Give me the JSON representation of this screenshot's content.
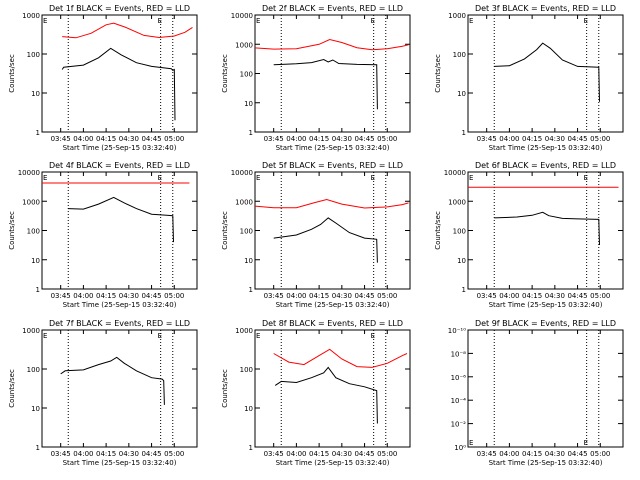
{
  "chart_data": [
    {
      "type": "line",
      "panel": 1,
      "title": "Det 1f BLACK = Events, RED = LLD",
      "xlabel": "Start Time (25-Sep-15 03:32:40)",
      "ylabel": "Counts/sec",
      "x_unit": "UT",
      "xlim": [
        "03:32:40",
        "05:15:00"
      ],
      "x_ticks": [
        "03:45",
        "04:00",
        "04:15",
        "04:30",
        "04:45",
        "05:00"
      ],
      "ylim": [
        1,
        1000
      ],
      "y_scale": "log",
      "y_ticks": [
        "1",
        "10",
        "100",
        "1000"
      ],
      "markers": [
        {
          "label": "E",
          "x": "03:32:40"
        },
        {
          "label": "E",
          "x": "04:51:00"
        }
      ],
      "dotted_lines": [
        "03:50",
        "04:51",
        "04:59"
      ],
      "series": [
        {
          "color": "#ff0000",
          "points": [
            [
              "03:46",
              280
            ],
            [
              "03:55",
              260
            ],
            [
              "04:05",
              340
            ],
            [
              "04:15",
              560
            ],
            [
              "04:20",
              620
            ],
            [
              "04:28",
              480
            ],
            [
              "04:40",
              300
            ],
            [
              "04:50",
              265
            ],
            [
              "05:00",
              290
            ],
            [
              "05:07",
              360
            ],
            [
              "05:12",
              480
            ]
          ]
        },
        {
          "color": "#000000",
          "points": [
            [
              "03:46",
              40
            ],
            [
              "03:47",
              46
            ],
            [
              "04:00",
              52
            ],
            [
              "04:10",
              80
            ],
            [
              "04:18",
              140
            ],
            [
              "04:25",
              95
            ],
            [
              "04:35",
              60
            ],
            [
              "04:45",
              48
            ],
            [
              "04:58",
              42
            ],
            [
              "04:59",
              38
            ],
            [
              "05:00",
              40
            ],
            [
              "05:00:30",
              2
            ]
          ]
        }
      ]
    },
    {
      "type": "line",
      "panel": 2,
      "title": "Det 2f BLACK = Events, RED = LLD",
      "xlabel": "Start Time (25-Sep-15 03:32:40)",
      "ylabel": "Counts/sec",
      "x_unit": "UT",
      "xlim": [
        "03:32:40",
        "05:15:00"
      ],
      "x_ticks": [
        "03:45",
        "04:00",
        "04:15",
        "04:30",
        "04:45",
        "05:00"
      ],
      "ylim": [
        1,
        10000
      ],
      "y_scale": "log",
      "y_ticks": [
        "1",
        "10",
        "100",
        "1000",
        "10000"
      ],
      "markers": [
        {
          "label": "E",
          "x": "03:32:40"
        },
        {
          "label": "E",
          "x": "04:51:00"
        }
      ],
      "dotted_lines": [
        "03:50",
        "04:51",
        "04:59"
      ],
      "series": [
        {
          "color": "#ff0000",
          "points": [
            [
              "03:32:40",
              750
            ],
            [
              "03:45",
              680
            ],
            [
              "04:00",
              700
            ],
            [
              "04:15",
              1000
            ],
            [
              "04:22",
              1450
            ],
            [
              "04:30",
              1150
            ],
            [
              "04:40",
              760
            ],
            [
              "04:50",
              650
            ],
            [
              "05:00",
              700
            ],
            [
              "05:10",
              860
            ],
            [
              "05:14",
              960
            ]
          ]
        },
        {
          "color": "#000000",
          "points": [
            [
              "03:45",
              200
            ],
            [
              "04:00",
              215
            ],
            [
              "04:10",
              235
            ],
            [
              "04:18",
              300
            ],
            [
              "04:21",
              250
            ],
            [
              "04:24",
              290
            ],
            [
              "04:28",
              220
            ],
            [
              "04:40",
              205
            ],
            [
              "04:53",
              200
            ],
            [
              "04:53:30",
              6
            ]
          ]
        }
      ]
    },
    {
      "type": "line",
      "panel": 3,
      "title": "Det 3f BLACK = Events, RED = LLD",
      "xlabel": "Start Time (25-Sep-15 03:32:40)",
      "ylabel": "Counts/sec",
      "x_unit": "UT",
      "xlim": [
        "03:32:40",
        "05:15:00"
      ],
      "x_ticks": [
        "03:45",
        "04:00",
        "04:15",
        "04:30",
        "04:45",
        "05:00"
      ],
      "ylim": [
        1,
        1000
      ],
      "y_scale": "log",
      "y_ticks": [
        "1",
        "10",
        "100",
        "1000"
      ],
      "markers": [
        {
          "label": "E",
          "x": "03:32:40"
        },
        {
          "label": "E",
          "x": "04:51:00"
        }
      ],
      "dotted_lines": [
        "03:50",
        "04:51",
        "04:59"
      ],
      "series": [
        {
          "color": "#000000",
          "points": [
            [
              "03:50",
              48
            ],
            [
              "04:00",
              50
            ],
            [
              "04:10",
              75
            ],
            [
              "04:18",
              130
            ],
            [
              "04:22",
              190
            ],
            [
              "04:27",
              140
            ],
            [
              "04:35",
              70
            ],
            [
              "04:45",
              48
            ],
            [
              "04:59",
              46
            ],
            [
              "04:59:30",
              6
            ]
          ]
        }
      ]
    },
    {
      "type": "line",
      "panel": 4,
      "title": "Det 4f BLACK = Events, RED = LLD",
      "xlabel": "Start Time (25-Sep-15 03:32:40)",
      "ylabel": "Counts/sec",
      "x_unit": "UT",
      "xlim": [
        "03:32:40",
        "05:15:00"
      ],
      "x_ticks": [
        "03:45",
        "04:00",
        "04:15",
        "04:30",
        "04:45",
        "05:00"
      ],
      "ylim": [
        1,
        10000
      ],
      "y_scale": "log",
      "y_ticks": [
        "1",
        "10",
        "100",
        "1000",
        "10000"
      ],
      "markers": [
        {
          "label": "E",
          "x": "03:32:40"
        },
        {
          "label": "E",
          "x": "04:51:00"
        }
      ],
      "dotted_lines": [
        "03:50",
        "04:51",
        "04:59"
      ],
      "series": [
        {
          "color": "#ff0000",
          "points": [
            [
              "03:32:40",
              4200
            ],
            [
              "05:10",
              4200
            ]
          ]
        },
        {
          "color": "#000000",
          "points": [
            [
              "03:50",
              560
            ],
            [
              "04:00",
              540
            ],
            [
              "04:10",
              800
            ],
            [
              "04:20",
              1350
            ],
            [
              "04:27",
              880
            ],
            [
              "04:35",
              560
            ],
            [
              "04:45",
              360
            ],
            [
              "04:55",
              330
            ],
            [
              "04:59",
              320
            ],
            [
              "04:59:30",
              40
            ]
          ]
        }
      ]
    },
    {
      "type": "line",
      "panel": 5,
      "title": "Det 5f BLACK = Events, RED = LLD",
      "xlabel": "Start Time (25-Sep-15 03:32:40)",
      "ylabel": "Counts/sec",
      "x_unit": "UT",
      "xlim": [
        "03:32:40",
        "05:15:00"
      ],
      "x_ticks": [
        "03:45",
        "04:00",
        "04:15",
        "04:30",
        "04:45",
        "05:00"
      ],
      "ylim": [
        1,
        10000
      ],
      "y_scale": "log",
      "y_ticks": [
        "1",
        "10",
        "100",
        "1000",
        "10000"
      ],
      "markers": [
        {
          "label": "E",
          "x": "03:32:40"
        },
        {
          "label": "E",
          "x": "04:51:00"
        }
      ],
      "dotted_lines": [
        "03:50",
        "04:51",
        "04:59"
      ],
      "series": [
        {
          "color": "#ff0000",
          "points": [
            [
              "03:32:40",
              680
            ],
            [
              "03:45",
              600
            ],
            [
              "04:00",
              600
            ],
            [
              "04:12",
              900
            ],
            [
              "04:20",
              1150
            ],
            [
              "04:30",
              800
            ],
            [
              "04:45",
              590
            ],
            [
              "05:00",
              640
            ],
            [
              "05:10",
              770
            ],
            [
              "05:14",
              880
            ]
          ]
        },
        {
          "color": "#000000",
          "points": [
            [
              "03:45",
              55
            ],
            [
              "04:00",
              70
            ],
            [
              "04:10",
              110
            ],
            [
              "04:16",
              160
            ],
            [
              "04:21",
              270
            ],
            [
              "04:26",
              180
            ],
            [
              "04:35",
              85
            ],
            [
              "04:45",
              55
            ],
            [
              "04:53",
              50
            ],
            [
              "04:53:30",
              8
            ]
          ]
        }
      ]
    },
    {
      "type": "line",
      "panel": 6,
      "title": "Det 6f BLACK = Events, RED = LLD",
      "xlabel": "Start Time (25-Sep-15 03:32:40)",
      "ylabel": "Counts/sec",
      "x_unit": "UT",
      "xlim": [
        "03:32:40",
        "05:15:00"
      ],
      "x_ticks": [
        "03:45",
        "04:00",
        "04:15",
        "04:30",
        "04:45",
        "05:00"
      ],
      "ylim": [
        1,
        10000
      ],
      "y_scale": "log",
      "y_ticks": [
        "1",
        "10",
        "100",
        "1000",
        "10000"
      ],
      "markers": [
        {
          "label": "E",
          "x": "03:32:40"
        },
        {
          "label": "E",
          "x": "04:51:00"
        }
      ],
      "dotted_lines": [
        "03:50",
        "04:51",
        "04:59"
      ],
      "series": [
        {
          "color": "#ff0000",
          "points": [
            [
              "03:32:40",
              3000
            ],
            [
              "05:12",
              3000
            ]
          ]
        },
        {
          "color": "#000000",
          "points": [
            [
              "03:50",
              270
            ],
            [
              "04:05",
              290
            ],
            [
              "04:15",
              330
            ],
            [
              "04:22",
              420
            ],
            [
              "04:26",
              320
            ],
            [
              "04:35",
              260
            ],
            [
              "04:45",
              250
            ],
            [
              "04:59",
              240
            ],
            [
              "04:59:30",
              32
            ]
          ]
        }
      ]
    },
    {
      "type": "line",
      "panel": 7,
      "title": "Det 7f BLACK = Events, RED = LLD",
      "xlabel": "Start Time (25-Sep-15 03:32:40)",
      "ylabel": "Counts/sec",
      "x_unit": "UT",
      "xlim": [
        "03:32:40",
        "05:15:00"
      ],
      "x_ticks": [
        "03:45",
        "04:00",
        "04:15",
        "04:30",
        "04:45",
        "05:00"
      ],
      "ylim": [
        1,
        1000
      ],
      "y_scale": "log",
      "y_ticks": [
        "1",
        "10",
        "100",
        "1000"
      ],
      "markers": [
        {
          "label": "E",
          "x": "03:32:40"
        },
        {
          "label": "E",
          "x": "04:51:00"
        }
      ],
      "dotted_lines": [
        "03:50",
        "04:51",
        "04:59"
      ],
      "series": [
        {
          "color": "#000000",
          "points": [
            [
              "03:45",
              75
            ],
            [
              "03:48",
              90
            ],
            [
              "04:00",
              95
            ],
            [
              "04:10",
              130
            ],
            [
              "04:18",
              160
            ],
            [
              "04:22",
              200
            ],
            [
              "04:27",
              140
            ],
            [
              "04:35",
              90
            ],
            [
              "04:45",
              60
            ],
            [
              "04:52",
              55
            ],
            [
              "04:53",
              50
            ],
            [
              "04:53:30",
              12
            ]
          ]
        }
      ]
    },
    {
      "type": "line",
      "panel": 8,
      "title": "Det 8f BLACK = Events, RED = LLD",
      "xlabel": "Start Time (25-Sep-15 03:32:40)",
      "ylabel": "Counts/sec",
      "x_unit": "UT",
      "xlim": [
        "03:32:40",
        "05:15:00"
      ],
      "x_ticks": [
        "03:45",
        "04:00",
        "04:15",
        "04:30",
        "04:45",
        "05:00"
      ],
      "ylim": [
        1,
        1000
      ],
      "y_scale": "log",
      "y_ticks": [
        "1",
        "10",
        "100",
        "1000"
      ],
      "markers": [
        {
          "label": "E",
          "x": "03:32:40"
        },
        {
          "label": "E",
          "x": "04:51:00"
        }
      ],
      "dotted_lines": [
        "03:50",
        "04:51",
        "04:59"
      ],
      "series": [
        {
          "color": "#ff0000",
          "points": [
            [
              "03:45",
              250
            ],
            [
              "03:55",
              150
            ],
            [
              "04:05",
              130
            ],
            [
              "04:15",
              220
            ],
            [
              "04:22",
              320
            ],
            [
              "04:30",
              180
            ],
            [
              "04:40",
              115
            ],
            [
              "04:50",
              110
            ],
            [
              "05:00",
              140
            ],
            [
              "05:10",
              220
            ],
            [
              "05:13",
              250
            ]
          ]
        },
        {
          "color": "#000000",
          "points": [
            [
              "03:46",
              38
            ],
            [
              "03:50",
              48
            ],
            [
              "04:00",
              45
            ],
            [
              "04:10",
              60
            ],
            [
              "04:18",
              80
            ],
            [
              "04:21",
              110
            ],
            [
              "04:26",
              60
            ],
            [
              "04:35",
              42
            ],
            [
              "04:45",
              35
            ],
            [
              "04:53",
              28
            ],
            [
              "04:53:30",
              4
            ]
          ]
        }
      ]
    },
    {
      "type": "line",
      "panel": 9,
      "title": "Det 9f BLACK = Events, RED = LLD",
      "xlabel": "Start Time (25-Sep-15 03:32:40)",
      "ylabel": "",
      "x_unit": "UT",
      "xlim": [
        "03:32:40",
        "05:15:00"
      ],
      "x_ticks": [
        "03:45",
        "04:00",
        "04:15",
        "04:30",
        "04:45",
        "05:00"
      ],
      "ylim": [
        1,
        1e-10
      ],
      "y_scale": "log",
      "y_ticks": [
        "10^-10",
        "10^-8",
        "10^-6",
        "10^-4",
        "10^-2",
        "10^0"
      ],
      "markers": [
        {
          "label": "E",
          "x": "03:32:40"
        },
        {
          "label": "E",
          "x": "04:51:00"
        }
      ],
      "dotted_lines": [
        "03:50",
        "04:51",
        "04:59"
      ],
      "series": []
    }
  ]
}
